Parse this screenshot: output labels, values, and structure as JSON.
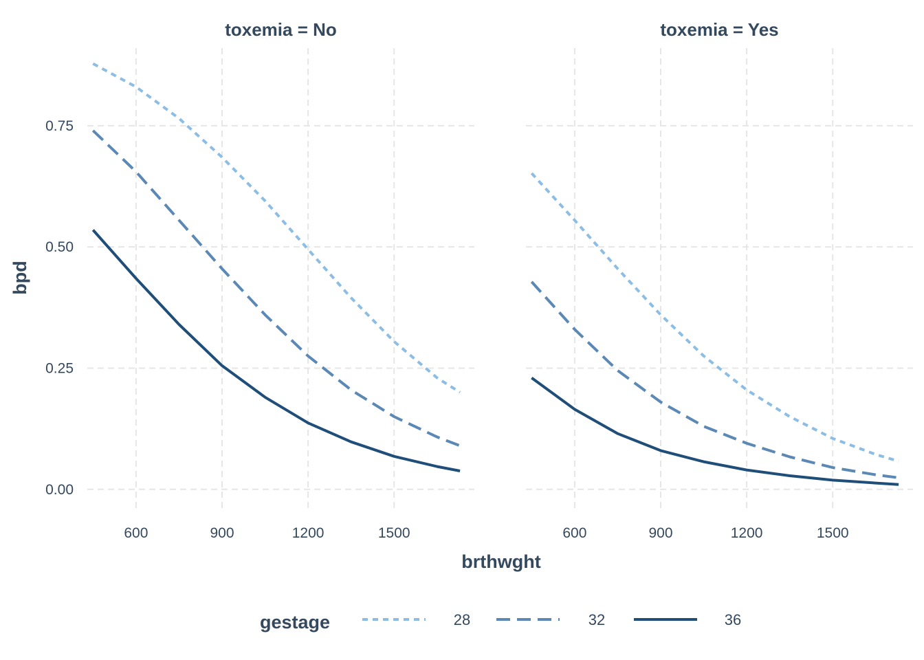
{
  "chart_data": {
    "type": "line",
    "xlabel": "brthwght",
    "ylabel": "bpd",
    "xlim": [
      430,
      1780
    ],
    "ylim": [
      -0.04,
      0.91
    ],
    "x_ticks": [
      600,
      900,
      1200,
      1500
    ],
    "x_tick_labels": [
      "600",
      "900",
      "1200",
      "1500"
    ],
    "y_ticks": [
      0,
      0.25,
      0.5,
      0.75
    ],
    "y_tick_labels": [
      "0.00",
      "0.25",
      "0.50",
      "0.75"
    ],
    "grid": true,
    "legend": {
      "title": "gestage",
      "position": "bottom",
      "entries": [
        "28",
        "32",
        "36"
      ]
    },
    "x": [
      450,
      600,
      750,
      900,
      1050,
      1200,
      1350,
      1500,
      1650,
      1730
    ],
    "panels": [
      {
        "strip": "toxemia = No",
        "series": [
          {
            "name": "28",
            "color": "#8dbde3",
            "dash": "dotted",
            "values": [
              0.878,
              0.83,
              0.765,
              0.685,
              0.595,
              0.495,
              0.395,
              0.305,
              0.23,
              0.2
            ]
          },
          {
            "name": "32",
            "color": "#5b88b5",
            "dash": "dashed",
            "values": [
              0.74,
              0.655,
              0.555,
              0.455,
              0.36,
              0.275,
              0.205,
              0.15,
              0.108,
              0.09
            ]
          },
          {
            "name": "36",
            "color": "#1f4e79",
            "dash": "solid",
            "values": [
              0.535,
              0.435,
              0.34,
              0.255,
              0.19,
              0.137,
              0.098,
              0.068,
              0.047,
              0.038
            ]
          }
        ]
      },
      {
        "strip": "toxemia = Yes",
        "series": [
          {
            "name": "28",
            "color": "#8dbde3",
            "dash": "dotted",
            "values": [
              0.652,
              0.555,
              0.455,
              0.36,
              0.275,
              0.205,
              0.15,
              0.105,
              0.072,
              0.058
            ]
          },
          {
            "name": "32",
            "color": "#5b88b5",
            "dash": "dashed",
            "values": [
              0.428,
              0.33,
              0.245,
              0.18,
              0.13,
              0.095,
              0.067,
              0.045,
              0.03,
              0.024
            ]
          },
          {
            "name": "36",
            "color": "#1f4e79",
            "dash": "solid",
            "values": [
              0.23,
              0.165,
              0.115,
              0.08,
              0.057,
              0.04,
              0.028,
              0.019,
              0.013,
              0.01
            ]
          }
        ]
      }
    ]
  }
}
